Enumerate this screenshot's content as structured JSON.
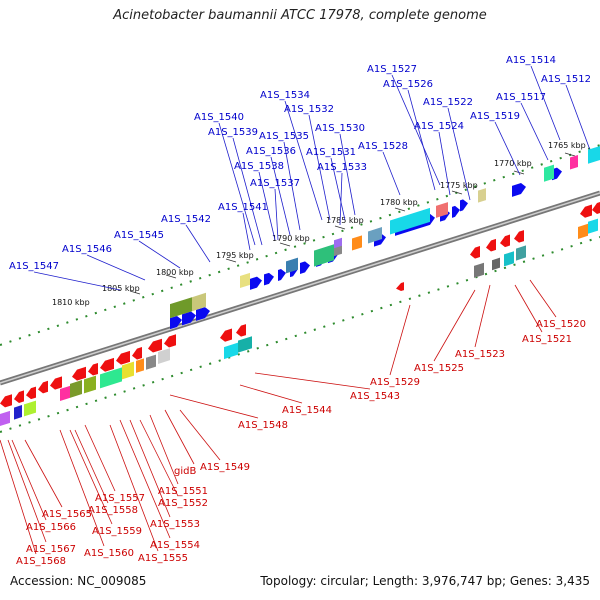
{
  "title": "Acinetobacter baumannii ATCC 17978, complete genome",
  "accession": "Accession: NC_009085",
  "summary": "Topology: circular; Length: 3,976,747 bp; Genes: 3,435",
  "colors": {
    "forward_label": "#0000cc",
    "reverse_label": "#cc0000",
    "backbone": "#777777",
    "dots": "#2e8b2e"
  },
  "ticks": [
    "1765 kbp",
    "1770 kbp",
    "1775 kbp",
    "1780 kbp",
    "1785 kbp",
    "1790 kbp",
    "1795 kbp",
    "1800 kbp",
    "1805 kbp",
    "1810 kbp"
  ],
  "forward_genes": [
    "A1S_1514",
    "A1S_1512",
    "A1S_1527",
    "A1S_1526",
    "A1S_1534",
    "A1S_1522",
    "A1S_1532",
    "A1S_1517",
    "A1S_1540",
    "A1S_1519",
    "A1S_1524",
    "A1S_1530",
    "A1S_1539",
    "A1S_1535",
    "A1S_1536",
    "A1S_1531",
    "A1S_1528",
    "A1S_1538",
    "A1S_1533",
    "A1S_1537",
    "A1S_1541",
    "A1S_1542",
    "A1S_1545",
    "A1S_1546",
    "A1S_1547"
  ],
  "reverse_genes": [
    "A1S_1520",
    "A1S_1521",
    "A1S_1523",
    "A1S_1525",
    "A1S_1529",
    "A1S_1543",
    "A1S_1544",
    "A1S_1548",
    "A1S_1549",
    "gidB",
    "A1S_1551",
    "A1S_1557",
    "A1S_1552",
    "A1S_1558",
    "A1S_1565",
    "A1S_1553",
    "A1S_1566",
    "A1S_1559",
    "A1S_1554",
    "A1S_1567",
    "A1S_1560",
    "A1S_1555",
    "A1S_1568"
  ]
}
